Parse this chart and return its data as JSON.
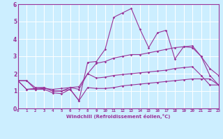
{
  "xlabel": "Windchill (Refroidissement éolien,°C)",
  "background_color": "#cceeff",
  "line_color": "#993399",
  "grid_color": "#ffffff",
  "xlim": [
    0,
    23
  ],
  "ylim": [
    0,
    6
  ],
  "xticks": [
    0,
    1,
    2,
    3,
    4,
    5,
    6,
    7,
    8,
    9,
    10,
    11,
    12,
    13,
    14,
    15,
    16,
    17,
    18,
    19,
    20,
    21,
    22,
    23
  ],
  "yticks": [
    0,
    1,
    2,
    3,
    4,
    5,
    6
  ],
  "series": [
    [
      1.6,
      1.6,
      1.1,
      1.1,
      0.9,
      0.85,
      1.1,
      0.45,
      1.2,
      1.15,
      1.15,
      1.2,
      1.3,
      1.35,
      1.4,
      1.45,
      1.5,
      1.55,
      1.6,
      1.65,
      1.7,
      1.7,
      1.7,
      1.35
    ],
    [
      1.6,
      1.1,
      1.1,
      1.15,
      1.1,
      1.15,
      1.2,
      1.25,
      2.0,
      1.75,
      1.8,
      1.9,
      1.95,
      2.0,
      2.05,
      2.1,
      2.15,
      2.2,
      2.3,
      2.35,
      2.4,
      1.9,
      1.35,
      1.35
    ],
    [
      1.6,
      1.6,
      1.2,
      1.2,
      1.0,
      1.0,
      1.2,
      1.1,
      2.0,
      2.6,
      2.7,
      2.9,
      3.0,
      3.1,
      3.1,
      3.2,
      3.3,
      3.4,
      3.5,
      3.55,
      3.6,
      3.0,
      2.3,
      1.9
    ],
    [
      1.6,
      1.1,
      1.15,
      1.2,
      1.0,
      1.0,
      1.1,
      0.45,
      2.65,
      2.7,
      3.4,
      5.25,
      5.5,
      5.75,
      4.55,
      3.5,
      4.35,
      4.5,
      2.85,
      3.55,
      3.5,
      3.0,
      1.9,
      1.35
    ]
  ]
}
